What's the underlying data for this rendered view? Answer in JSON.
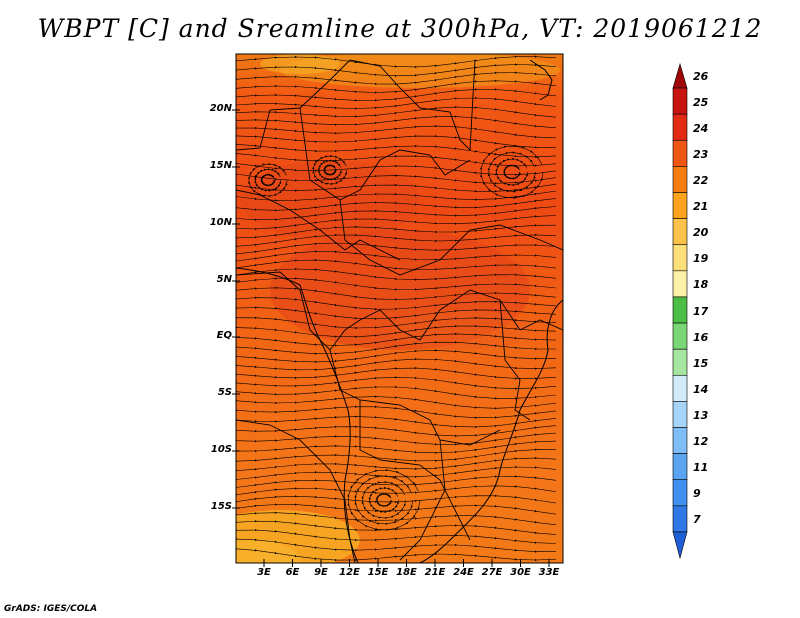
{
  "title": "WBPT [C] and Sreamline at 300hPa, VT: 2019061212",
  "footer": "GrADS: IGES/COLA",
  "map": {
    "lat_labels": [
      "20N",
      "15N",
      "10N",
      "5N",
      "EQ",
      "5S",
      "10S",
      "15S"
    ],
    "lon_labels": [
      "3E",
      "6E",
      "9E",
      "12E",
      "15E",
      "18E",
      "21E",
      "24E",
      "27E",
      "30E",
      "33E"
    ]
  },
  "colorbar": {
    "levels": [
      "7",
      "9",
      "11",
      "12",
      "13",
      "14",
      "15",
      "16",
      "17",
      "18",
      "19",
      "20",
      "21",
      "22",
      "23",
      "24",
      "25",
      "26"
    ],
    "colors": [
      "#1f5fd6",
      "#2e78e6",
      "#3f90ef",
      "#5aa4f2",
      "#7ebdf6",
      "#a7d4f8",
      "#d2ecfb",
      "#a6e6a0",
      "#7ad674",
      "#4cbe45",
      "#fff2a8",
      "#fde07a",
      "#fcc24a",
      "#f9a41c",
      "#f57d0f",
      "#f05614",
      "#e02b12",
      "#c8140f",
      "#a00808"
    ]
  }
}
